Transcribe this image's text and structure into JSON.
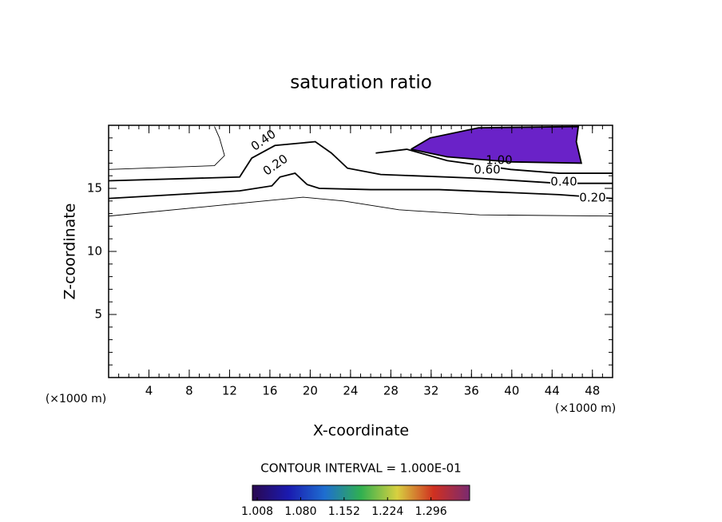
{
  "chart_data": {
    "type": "contour",
    "title": "saturation ratio",
    "x_label": "X-coordinate",
    "y_label": "Z-coordinate",
    "x_unit": "(×1000 m)",
    "y_unit": "(×1000 m)",
    "xlim": [
      0,
      50
    ],
    "ylim": [
      0,
      20
    ],
    "xticks": [
      4,
      8,
      12,
      16,
      20,
      24,
      28,
      32,
      36,
      40,
      44,
      48
    ],
    "yticks": [
      5,
      10,
      15
    ],
    "minor_step": 1,
    "line_color": "#000000",
    "fill_color": "#6a22c8",
    "contours": [
      {
        "x": [
          0,
          9,
          15.4,
          19.3,
          23.3,
          28.8,
          36.8,
          50
        ],
        "y": [
          12.8,
          13.5,
          14.0,
          14.3,
          14.0,
          13.3,
          12.9,
          12.8
        ]
      },
      {
        "level": 0.2,
        "labels": [
          "0.20",
          "0.20"
        ],
        "x": [
          0,
          13,
          16.2,
          17,
          18.5,
          19.7,
          20.9,
          26,
          32.8,
          44.7,
          50
        ],
        "y": [
          14.2,
          14.8,
          15.2,
          15.9,
          16.2,
          15.3,
          15.0,
          14.9,
          14.9,
          14.5,
          14.2
        ]
      },
      {
        "x": [
          0,
          10.5,
          11.5,
          11,
          10.5
        ],
        "y": [
          16.5,
          16.8,
          17.6,
          19,
          19.9
        ]
      },
      {
        "level": 0.4,
        "labels": [
          "0.40",
          "0.40"
        ],
        "x": [
          0,
          13,
          14.2,
          16.5,
          20.5,
          22.1,
          23.7,
          27,
          36.8,
          44.7,
          50
        ],
        "y": [
          15.6,
          15.9,
          17.4,
          18.4,
          18.7,
          17.8,
          16.6,
          16.1,
          15.8,
          15.4,
          15.4
        ]
      },
      {
        "level": 0.6,
        "labels": [
          "0.60"
        ],
        "x": [
          26.5,
          29.6,
          33.6,
          39.9,
          44.7,
          50
        ],
        "y": [
          17.8,
          18.1,
          17.2,
          16.5,
          16.2,
          16.2
        ]
      },
      {
        "level": 1.0,
        "labels": [
          "1.00"
        ],
        "filled": true,
        "x": [
          30,
          31.9,
          36.7,
          46.6,
          46.4,
          46.9,
          39.9,
          33.6,
          30
        ],
        "y": [
          18.1,
          19.0,
          19.8,
          19.9,
          18.7,
          17.0,
          17.1,
          17.5,
          18.1
        ]
      }
    ],
    "interval_text": "CONTOUR INTERVAL = 1.000E-01",
    "colorbar": {
      "lim": [
        1.0,
        1.36
      ],
      "ticks": [
        {
          "value": 1.008,
          "label": "1.008"
        },
        {
          "value": 1.08,
          "label": "1.080"
        },
        {
          "value": 1.152,
          "label": "1.152"
        },
        {
          "value": 1.224,
          "label": "1.224"
        },
        {
          "value": 1.296,
          "label": "1.296"
        }
      ],
      "colors": [
        "#2a0850",
        "#1a1ab0",
        "#1e6ed0",
        "#30b050",
        "#d8d040",
        "#d03020",
        "#7a2a70"
      ]
    }
  }
}
